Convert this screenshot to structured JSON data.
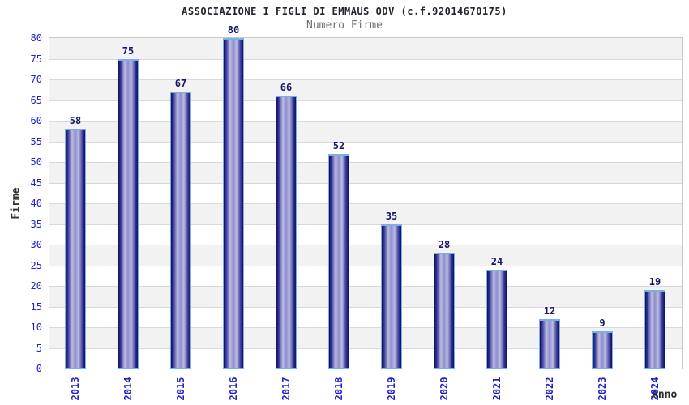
{
  "chart_data": {
    "type": "bar",
    "title": "ASSOCIAZIONE I FIGLI DI EMMAUS ODV (c.f.92014670175)",
    "subtitle": "Numero Firme",
    "xlabel": "Anno",
    "ylabel": "Firme",
    "categories": [
      "2013",
      "2014",
      "2015",
      "2016",
      "2017",
      "2018",
      "2019",
      "2020",
      "2021",
      "2022",
      "2023",
      "2024"
    ],
    "values": [
      58,
      75,
      67,
      80,
      66,
      52,
      35,
      28,
      24,
      12,
      9,
      19
    ],
    "ylim": [
      0,
      80
    ],
    "ytick_step": 5,
    "grid": true,
    "legend": "none",
    "value_labels_shown": true,
    "x_tick_rotation_deg": -90,
    "colors": {
      "title": "#24242e",
      "subtitle": "#707070",
      "axis_title": "#333333",
      "tick_label": "#2222cc",
      "value_label": "#16166b",
      "plot_border": "#c9c9c9",
      "gridline": "#d9d9d9",
      "band_gray": "#f2f2f2",
      "band_white": "#ffffff",
      "bar_edge": "#10105e",
      "bar_dark": "#34349a",
      "bar_light": "#bcbce2",
      "bar_center": "#8e8ecc",
      "bar_outline": "#7db0e2"
    }
  }
}
